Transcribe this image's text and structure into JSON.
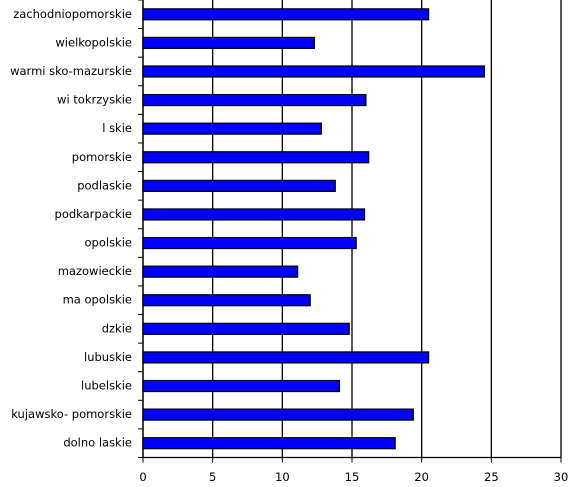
{
  "chart_data": {
    "type": "bar",
    "orientation": "horizontal",
    "categories": [
      "zachodniopomorskie",
      "wielkopolskie",
      "warmi sko-mazurskie",
      "wi tokrzyskie",
      "l skie",
      "pomorskie",
      "podlaskie",
      "podkarpackie",
      "opolskie",
      "mazowieckie",
      "ma opolskie",
      "dzkie",
      "lubuskie",
      "lubelskie",
      "kujawsko- pomorskie",
      "dolno laskie"
    ],
    "values": [
      20.5,
      12.3,
      24.5,
      16.0,
      12.8,
      16.2,
      13.8,
      15.9,
      15.3,
      11.1,
      12.0,
      14.8,
      20.5,
      14.1,
      19.4,
      18.1
    ],
    "color": "#0000ff",
    "xlim": [
      0,
      30
    ],
    "xticks": [
      0,
      5,
      10,
      15,
      20,
      25,
      30
    ],
    "grid": true
  }
}
